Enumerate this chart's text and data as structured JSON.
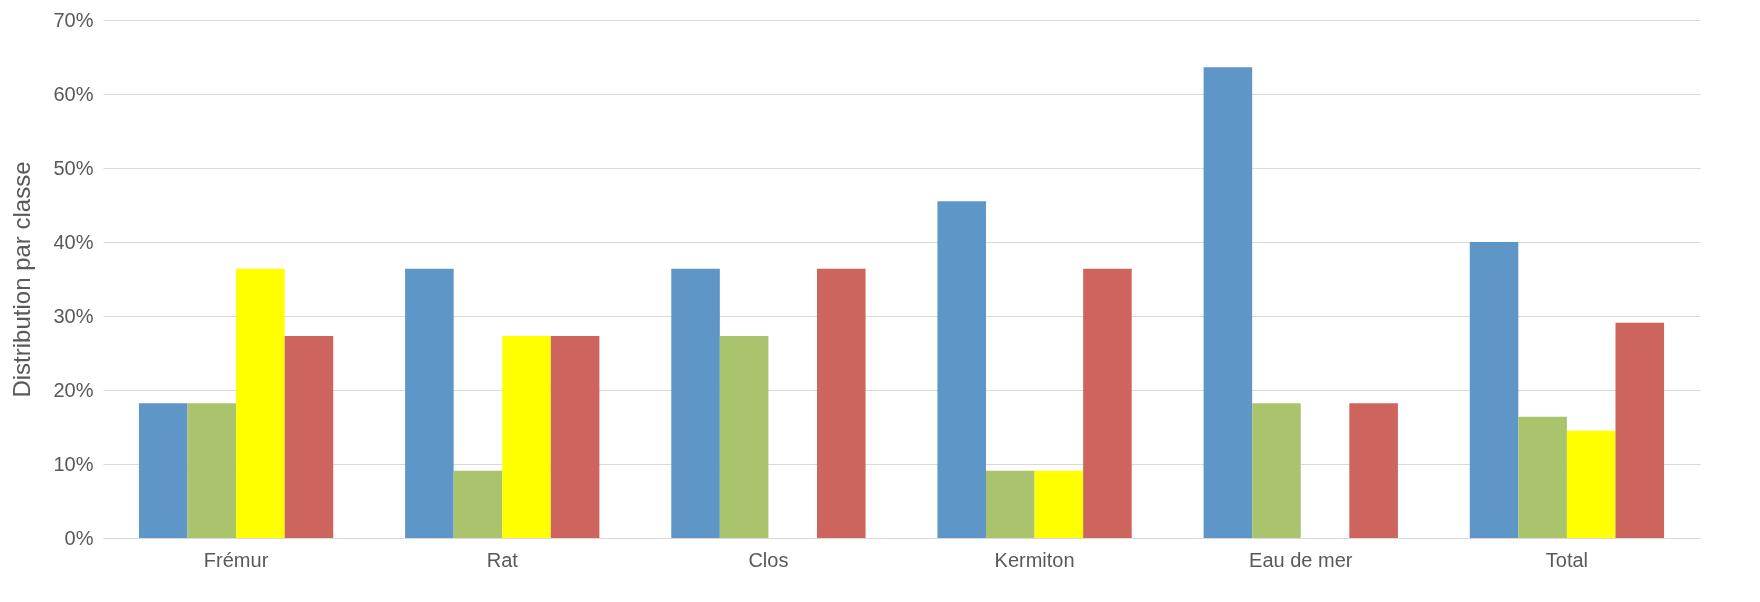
{
  "chart_data": {
    "type": "bar",
    "ylabel": "Distribution par classe",
    "categories": [
      "Frémur",
      "Rat",
      "Clos",
      "Kermiton",
      "Eau de mer",
      "Total"
    ],
    "series": [
      {
        "color": "#5f96c8",
        "values": [
          18.2,
          36.4,
          36.4,
          45.5,
          63.6,
          40.0
        ]
      },
      {
        "color": "#a9c46c",
        "values": [
          18.2,
          9.1,
          27.3,
          9.1,
          18.2,
          16.4
        ]
      },
      {
        "color": "#ffff00",
        "values": [
          36.4,
          27.3,
          0,
          9.1,
          0,
          14.5
        ]
      },
      {
        "color": "#cd655e",
        "values": [
          27.3,
          27.3,
          36.4,
          36.4,
          18.2,
          29.1
        ]
      }
    ],
    "ylim": [
      0,
      70
    ],
    "yticks": [
      {
        "value": 0,
        "label": "0%"
      },
      {
        "value": 10,
        "label": "10%"
      },
      {
        "value": 20,
        "label": "20%"
      },
      {
        "value": 30,
        "label": "30%"
      },
      {
        "value": 40,
        "label": "40%"
      },
      {
        "value": 50,
        "label": "50%"
      },
      {
        "value": 60,
        "label": "60%"
      },
      {
        "value": 70,
        "label": "70%"
      }
    ],
    "grid": "y",
    "legend": false
  }
}
